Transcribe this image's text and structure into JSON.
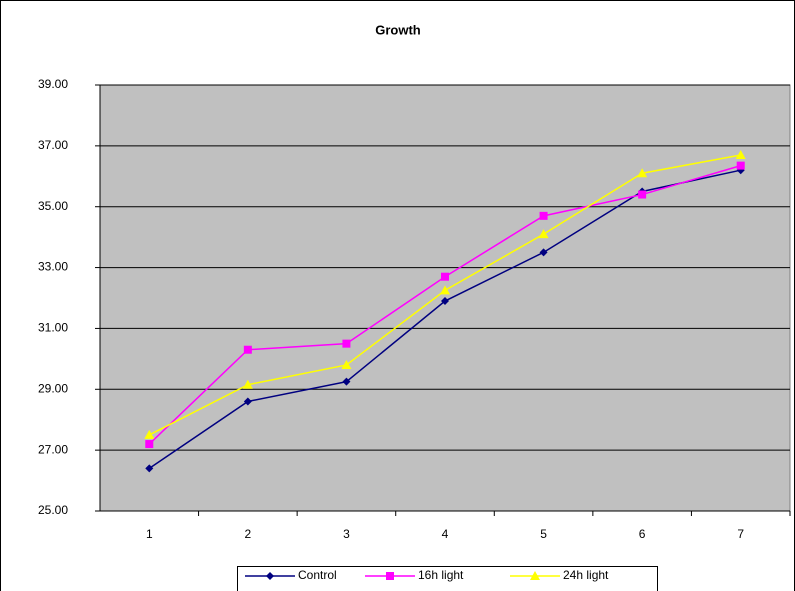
{
  "chart_data": {
    "type": "line",
    "title": "Growth",
    "categories": [
      "1",
      "2",
      "3",
      "4",
      "5",
      "6",
      "7"
    ],
    "series": [
      {
        "name": "Control",
        "color": "#000080",
        "marker": "diamond",
        "values": [
          26.4,
          28.6,
          29.25,
          31.9,
          33.5,
          35.5,
          36.2
        ]
      },
      {
        "name": "16h light",
        "color": "#ff00ff",
        "marker": "square",
        "values": [
          27.2,
          30.3,
          30.5,
          32.7,
          34.7,
          35.4,
          36.35
        ]
      },
      {
        "name": "24h light",
        "color": "#ffff00",
        "marker": "triangle",
        "values": [
          27.5,
          29.15,
          29.8,
          32.25,
          34.1,
          36.1,
          36.7
        ]
      }
    ],
    "ylim": [
      25,
      39
    ],
    "yticks": [
      {
        "value": 25,
        "label": "25.00"
      },
      {
        "value": 27,
        "label": "27.00"
      },
      {
        "value": 29,
        "label": "29.00"
      },
      {
        "value": 31,
        "label": "31.00"
      },
      {
        "value": 33,
        "label": "33.00"
      },
      {
        "value": 35,
        "label": "35.00"
      },
      {
        "value": 37,
        "label": "37.00"
      },
      {
        "value": 39,
        "label": "39.00"
      }
    ],
    "grid": true,
    "legend": "bottom"
  }
}
